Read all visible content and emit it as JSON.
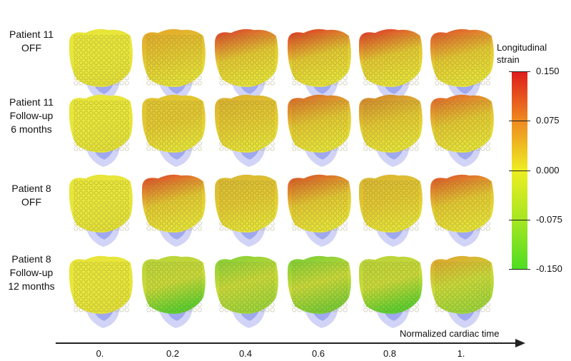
{
  "rows": [
    {
      "lines": [
        "Patient 11",
        "OFF"
      ]
    },
    {
      "lines": [
        "Patient 11",
        "Follow-up",
        "6 months"
      ]
    },
    {
      "lines": [
        "Patient 8",
        "OFF"
      ]
    },
    {
      "lines": [
        "Patient 8",
        "Follow-up",
        "12 months"
      ]
    }
  ],
  "colorbar": {
    "title": "Longitudinal strain",
    "tick_labels": [
      "0.150",
      "0.075",
      "0.000",
      "-0.075",
      "-0.150"
    ],
    "range": [
      -0.15,
      0.15
    ],
    "colors": [
      "#dd1b1b",
      "#ee8a1f",
      "#eeee22",
      "#a6e621",
      "#4cdd22"
    ]
  },
  "axis": {
    "title": "Normalized cardiac time",
    "tick_labels": [
      "0.",
      "0.2",
      "0.4",
      "0.6",
      "0.8",
      "1."
    ]
  },
  "heart_colors": {
    "cavity": "#9aa3ee",
    "wall": "#c9cdf4",
    "dot_outline": "#6b6b2b"
  }
}
